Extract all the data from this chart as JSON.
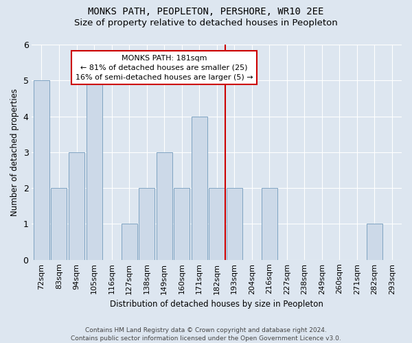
{
  "title": "MONKS PATH, PEOPLETON, PERSHORE, WR10 2EE",
  "subtitle": "Size of property relative to detached houses in Peopleton",
  "xlabel": "Distribution of detached houses by size in Peopleton",
  "ylabel": "Number of detached properties",
  "footnote1": "Contains HM Land Registry data © Crown copyright and database right 2024.",
  "footnote2": "Contains public sector information licensed under the Open Government Licence v3.0.",
  "categories": [
    "72sqm",
    "83sqm",
    "94sqm",
    "105sqm",
    "116sqm",
    "127sqm",
    "138sqm",
    "149sqm",
    "160sqm",
    "171sqm",
    "182sqm",
    "193sqm",
    "204sqm",
    "216sqm",
    "227sqm",
    "238sqm",
    "249sqm",
    "260sqm",
    "271sqm",
    "282sqm",
    "293sqm"
  ],
  "values": [
    5,
    2,
    3,
    5,
    0,
    1,
    2,
    3,
    2,
    4,
    2,
    2,
    0,
    2,
    0,
    0,
    0,
    0,
    0,
    1,
    0
  ],
  "bar_color": "#ccd9e8",
  "bar_edge_color": "#7099bb",
  "background_color": "#dde6f0",
  "grid_color": "#ffffff",
  "annotation_text": "MONKS PATH: 181sqm\n← 81% of detached houses are smaller (25)\n16% of semi-detached houses are larger (5) →",
  "vline_position": 10.5,
  "annotation_box_facecolor": "#ffffff",
  "annotation_box_edge_color": "#cc0000",
  "vline_color": "#cc0000",
  "ylim": [
    0,
    6
  ],
  "yticks": [
    0,
    1,
    2,
    3,
    4,
    5,
    6
  ],
  "title_fontsize": 10,
  "subtitle_fontsize": 9.5,
  "tick_fontsize": 8,
  "ylabel_fontsize": 8.5,
  "xlabel_fontsize": 8.5,
  "annotation_fontsize": 8,
  "footnote_fontsize": 6.5
}
